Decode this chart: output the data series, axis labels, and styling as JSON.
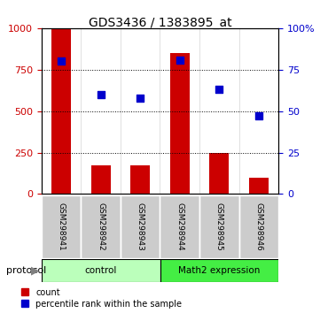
{
  "title": "GDS3436 / 1383895_at",
  "samples": [
    "GSM298941",
    "GSM298942",
    "GSM298943",
    "GSM298944",
    "GSM298945",
    "GSM298946"
  ],
  "bar_values": [
    1000,
    175,
    175,
    850,
    250,
    100
  ],
  "percentile_values": [
    80,
    60,
    58,
    81,
    63,
    47
  ],
  "bar_color": "#cc0000",
  "dot_color": "#0000cc",
  "left_ylim": [
    0,
    1000
  ],
  "right_ylim": [
    0,
    100
  ],
  "left_yticks": [
    0,
    250,
    500,
    750,
    1000
  ],
  "right_yticks": [
    0,
    25,
    50,
    75,
    100
  ],
  "left_yticklabels": [
    "0",
    "250",
    "500",
    "750",
    "1000"
  ],
  "right_yticklabels": [
    "0",
    "25",
    "50",
    "75",
    "100%"
  ],
  "groups": [
    {
      "label": "control",
      "indices": [
        0,
        1,
        2
      ],
      "color": "#bbffbb"
    },
    {
      "label": "Math2 expression",
      "indices": [
        3,
        4,
        5
      ],
      "color": "#44ee44"
    }
  ],
  "group_colors": [
    "#bbffbb",
    "#44ee44"
  ],
  "protocol_label": "protocol",
  "legend_count_label": "count",
  "legend_pct_label": "percentile rank within the sample",
  "background_color": "#ffffff",
  "plot_bg_color": "#ffffff",
  "tick_area_color": "#cccccc"
}
